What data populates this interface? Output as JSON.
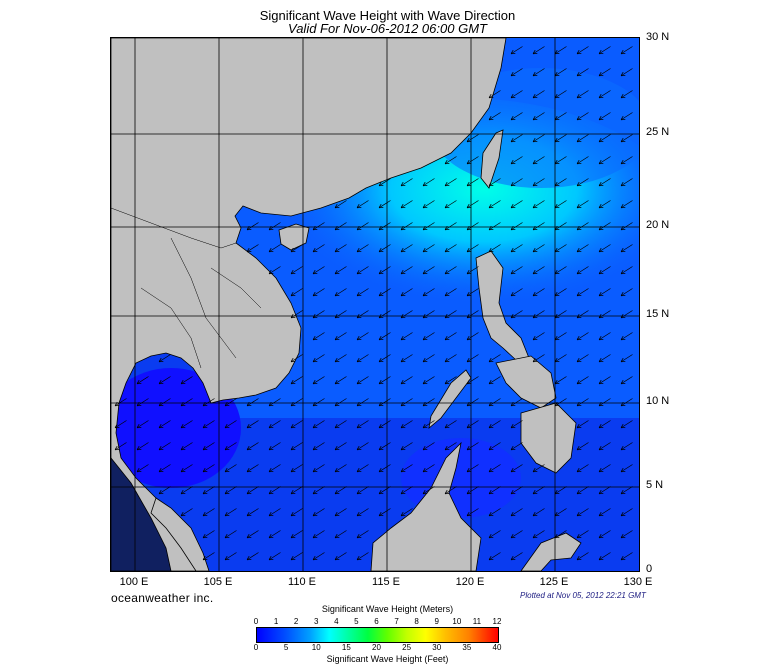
{
  "title": "Significant Wave Height with Wave Direction",
  "subtitle": "Valid For Nov-06-2012 06:00 GMT",
  "lat_labels": [
    "30 N",
    "25 N",
    "20 N",
    "15 N",
    "10 N",
    "5 N",
    "0"
  ],
  "lon_labels": [
    "100 E",
    "105 E",
    "110 E",
    "115 E",
    "120 E",
    "125 E",
    "130 E"
  ],
  "brand": "oceanweather inc.",
  "plotted": "Plotted at Nov 05, 2012 22:21 GMT",
  "colorbar": {
    "title_meters": "Significant Wave Height (Meters)",
    "title_feet": "Significant Wave Height (Feet)",
    "ticks_meters": [
      "0",
      "1",
      "2",
      "3",
      "4",
      "5",
      "6",
      "7",
      "8",
      "9",
      "10",
      "11",
      "12"
    ],
    "ticks_feet": [
      "0",
      "5",
      "10",
      "15",
      "20",
      "25",
      "30",
      "35",
      "40"
    ]
  },
  "colors": {
    "land": "#c0c0c0",
    "sea_low": "#0000ff",
    "sea_mid": "#0a5cff",
    "sea_high": "#00e0ff"
  }
}
